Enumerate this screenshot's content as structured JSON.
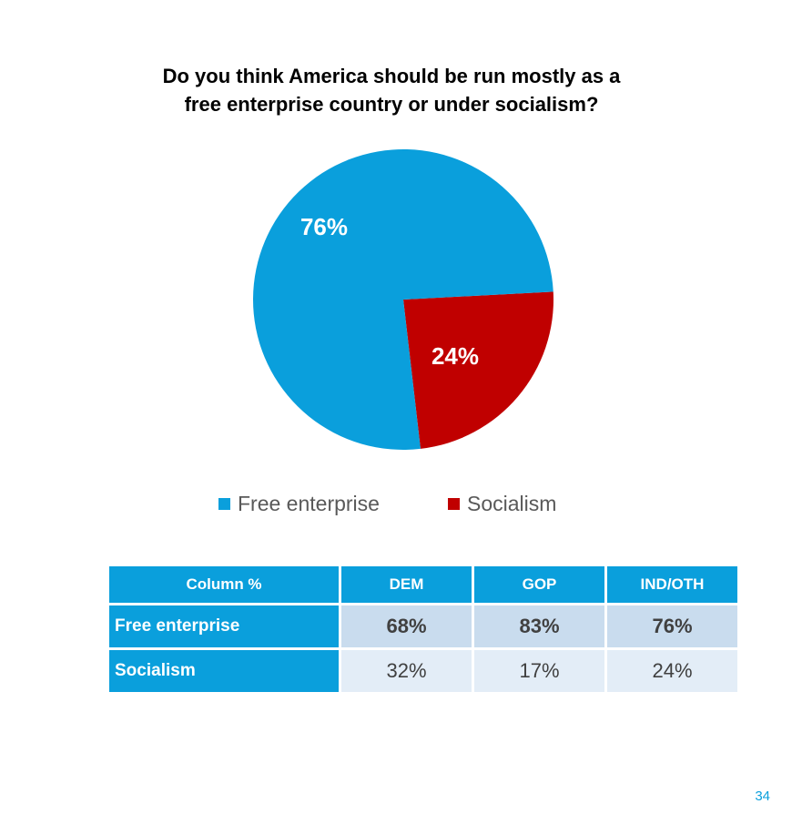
{
  "chart_data": {
    "type": "pie",
    "title_lines": [
      "Do you think America should be run mostly as a",
      "free enterprise country or under socialism?"
    ],
    "slices": [
      {
        "name": "Free enterprise",
        "value": 76,
        "label": "76%",
        "color": "#0a9fdc"
      },
      {
        "name": "Socialism",
        "value": 24,
        "label": "24%",
        "color": "#c00000"
      }
    ],
    "legend_position": "bottom"
  },
  "table": {
    "headers": [
      "Column %",
      "DEM",
      "GOP",
      "IND/OTH"
    ],
    "rows": [
      {
        "label": "Free enterprise",
        "values": [
          "68%",
          "83%",
          "76%"
        ]
      },
      {
        "label": "Socialism",
        "values": [
          "32%",
          "17%",
          "24%"
        ]
      }
    ]
  },
  "page_number": "34"
}
